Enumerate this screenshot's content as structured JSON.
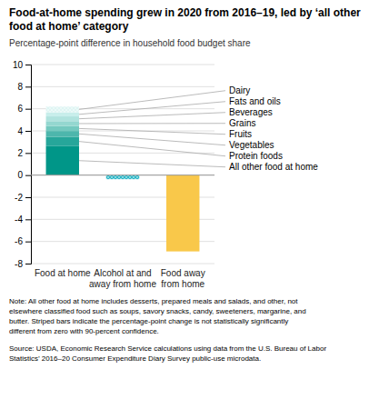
{
  "chart_data": {
    "type": "bar",
    "stacked": true,
    "title": "Food-at-home spending grew in 2020 from 2016–19, led by ‘all other\nfood at home’ category",
    "subtitle": "Percentage-point difference in household food budget share",
    "categories": [
      "Food at home",
      "Alcohol at and\naway from home",
      "Food away\nfrom home"
    ],
    "series": [
      {
        "name": "All other food at home",
        "color": "#009688",
        "values": [
          2.62,
          null,
          null
        ]
      },
      {
        "name": "Protein foods",
        "color": "#26a69a",
        "values": [
          0.85,
          null,
          null
        ]
      },
      {
        "name": "Vegetables",
        "color": "#4db6ac",
        "values": [
          0.52,
          null,
          null
        ]
      },
      {
        "name": "Fruits",
        "color": "#74c9bf",
        "values": [
          0.45,
          null,
          null
        ]
      },
      {
        "name": "Grains",
        "color": "#94d7d0",
        "values": [
          0.44,
          null,
          null
        ]
      },
      {
        "name": "Beverages",
        "color": "#b0e3de",
        "values": [
          0.43,
          null,
          null
        ]
      },
      {
        "name": "Fats and oils",
        "color": "#c8eeeb",
        "values": [
          0.37,
          null,
          null
        ]
      },
      {
        "name": "Dairy",
        "color": "#def5f3",
        "values": [
          0.52,
          null,
          null
        ],
        "marker": "hatch"
      },
      {
        "color": "#29b6c7",
        "values": [
          null,
          -0.37,
          null
        ],
        "marker": "hatch"
      },
      {
        "color": "#f9c84a",
        "values": [
          null,
          null,
          -6.9
        ]
      }
    ],
    "ylim": [
      -8,
      10
    ],
    "yticks": [
      -8,
      -6,
      -4,
      -2,
      0,
      2,
      4,
      6,
      8,
      10
    ],
    "grid": true,
    "annotations": [
      "Note: All other food at home includes desserts, prepared meals and salads, and other, not\nelsewhere classified food such as soups, savory snacks, candy, sweeteners, margarine, and\nbutter. Striped bars indicate the percentage-point change is not statistically significantly\ndifferent from zero with 90-percent confidence.",
      "Source: USDA, Economic Research Service calculations using data from the U.S. Bureau of Labor\nStatistics’ 2016–20 Consumer Expenditure Diary Survey public-use microdata."
    ]
  }
}
